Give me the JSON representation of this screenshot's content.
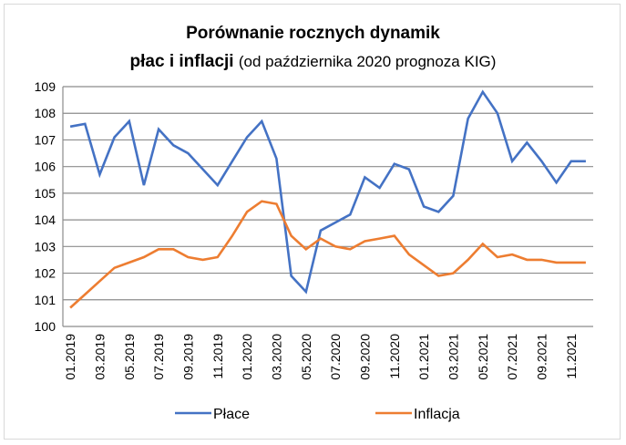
{
  "chart_data": {
    "type": "line",
    "title_line1": "Porównanie rocznych dynamik",
    "title_line2_bold": "płac i inflacji",
    "title_line2_normal": "(od października 2020 prognoza KIG)",
    "xlabel": "",
    "ylabel": "",
    "ylim": [
      100,
      109
    ],
    "yticks": [
      "100",
      "101",
      "102",
      "103",
      "104",
      "105",
      "106",
      "107",
      "108",
      "109"
    ],
    "x": [
      "01.2019",
      "02.2019",
      "03.2019",
      "04.2019",
      "05.2019",
      "06.2019",
      "07.2019",
      "08.2019",
      "09.2019",
      "10.2019",
      "11.2019",
      "12.2019",
      "01.2020",
      "02.2020",
      "03.2020",
      "04.2020",
      "05.2020",
      "06.2020",
      "07.2020",
      "08.2020",
      "09.2020",
      "10.2020",
      "11.2020",
      "12.2020",
      "01.2021",
      "02.2021",
      "03.2021",
      "04.2021",
      "05.2021",
      "06.2021",
      "07.2021",
      "08.2021",
      "09.2021",
      "10.2021",
      "11.2021",
      "12.2021"
    ],
    "xtick_labels": [
      "01.2019",
      "03.2019",
      "05.2019",
      "07.2019",
      "09.2019",
      "11.2019",
      "01.2020",
      "03.2020",
      "05.2020",
      "07.2020",
      "09.2020",
      "11.2020",
      "01.2021",
      "03.2021",
      "05.2021",
      "07.2021",
      "09.2021",
      "11.2021"
    ],
    "grid": true,
    "legend_position": "bottom",
    "series": [
      {
        "name": "Płace",
        "color": "#4472c4",
        "values": [
          107.5,
          107.6,
          105.7,
          107.1,
          107.7,
          105.3,
          107.4,
          106.8,
          106.5,
          105.9,
          105.3,
          106.2,
          107.1,
          107.7,
          106.3,
          101.9,
          101.3,
          103.6,
          103.9,
          104.2,
          105.6,
          105.2,
          106.1,
          105.9,
          104.5,
          104.3,
          104.9,
          107.8,
          108.8,
          108.0,
          106.2,
          106.9,
          106.2,
          105.4,
          106.2,
          106.2
        ]
      },
      {
        "name": "Inflacja",
        "color": "#ed7d31",
        "values": [
          100.7,
          101.2,
          101.7,
          102.2,
          102.4,
          102.6,
          102.9,
          102.9,
          102.6,
          102.5,
          102.6,
          103.4,
          104.3,
          104.7,
          104.6,
          103.4,
          102.9,
          103.3,
          103.0,
          102.9,
          103.2,
          103.3,
          103.4,
          102.7,
          102.3,
          101.9,
          102.0,
          102.5,
          103.1,
          102.6,
          102.7,
          102.5,
          102.5,
          102.4,
          102.4,
          102.4
        ]
      }
    ]
  }
}
